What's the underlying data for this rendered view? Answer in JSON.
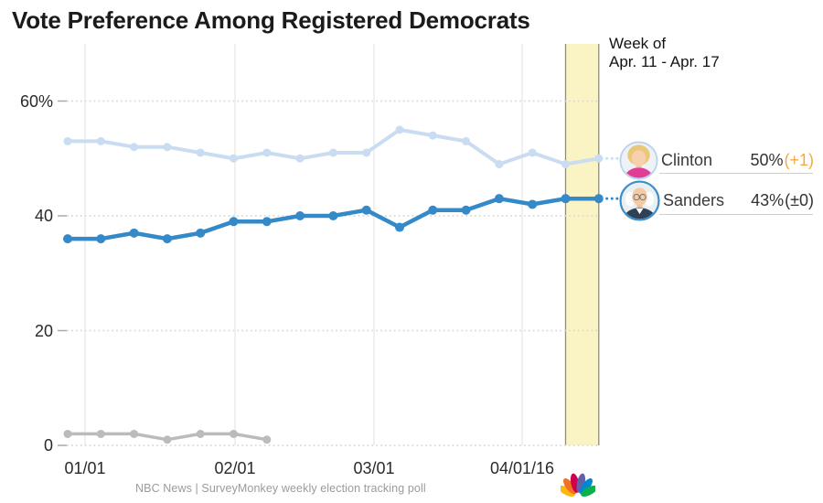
{
  "title": "Vote Preference Among Registered Democrats",
  "annotation": {
    "line1": "Week of",
    "line2": "Apr. 11 - Apr. 17"
  },
  "legend": [
    {
      "name": "Clinton",
      "value": "50%",
      "change": "(+1)",
      "change_direction": "up",
      "ring_color": "#b9d3ec"
    },
    {
      "name": "Sanders",
      "value": "43%",
      "change": "(±0)",
      "change_direction": "flat",
      "ring_color": "#3e8ec9"
    }
  ],
  "footer": {
    "source": "NBC News | SurveyMonkey weekly election tracking poll",
    "logo": "nbc-peacock"
  },
  "colors": {
    "clinton_line": "#c9dcf1",
    "sanders_line": "#3489c8",
    "gray_line": "#bbbbbb",
    "band_fill": "#faf3c3",
    "band_border": "#8e8e79",
    "grid_dotted": "#dbdbdb",
    "grid_vertical": "#e7e7e7",
    "change_positive": "#f6a93c",
    "nbc_peacock": [
      "#FCB711",
      "#F37021",
      "#CC004C",
      "#6460AA",
      "#0089D0",
      "#0DB14B"
    ]
  },
  "chart_data": {
    "type": "line",
    "title": "Vote Preference Among Registered Democrats",
    "x_axis": {
      "tick_labels": [
        "01/01",
        "02/01",
        "03/01",
        "04/01/16"
      ],
      "cadence": "weekly poll waves, 17 points"
    },
    "y_axis": {
      "tick_labels": [
        "60%",
        "40",
        "20",
        "0"
      ],
      "tick_values": [
        60,
        40,
        20,
        0
      ],
      "range": [
        0,
        65
      ],
      "grid": "dotted"
    },
    "series": [
      {
        "name": "Clinton",
        "color": "#c9dcf1",
        "values": [
          53,
          53,
          52,
          52,
          51,
          50,
          51,
          50,
          51,
          51,
          55,
          54,
          53,
          49,
          51,
          49,
          50
        ]
      },
      {
        "name": "Sanders",
        "color": "#3489c8",
        "values": [
          36,
          36,
          37,
          36,
          37,
          39,
          39,
          40,
          40,
          41,
          38,
          41,
          41,
          43,
          42,
          43,
          43
        ]
      },
      {
        "name": "unlabeled-gray",
        "color": "#bbbbbb",
        "values": [
          2,
          2,
          2,
          1,
          2,
          2,
          1
        ]
      }
    ],
    "highlight_band": {
      "label": "Week of Apr. 11 - Apr. 17",
      "covers": "final week (last two points)",
      "fill": "#faf3c3",
      "border": "#8e8e79"
    },
    "legend_position": "right",
    "final_values": {
      "Clinton": "50% (+1)",
      "Sanders": "43% (±0)"
    }
  }
}
